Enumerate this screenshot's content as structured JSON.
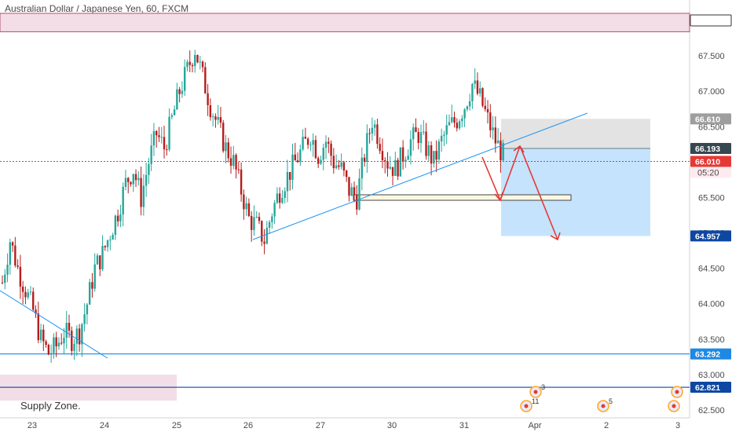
{
  "window": {
    "title": "Australian Dollar / Japanese Yen, 60, FXCM"
  },
  "chart_data": {
    "type": "candlestick",
    "title": "Australian Dollar / Japanese Yen, 60, FXCM",
    "ylim": [
      62.45,
      68.2
    ],
    "y_ticks": [
      62.5,
      63.0,
      63.5,
      64.0,
      64.5,
      65.0,
      65.5,
      66.0,
      66.5,
      67.0,
      67.5
    ],
    "y_tick_labels": [
      "62.500",
      "63.000",
      "63.500",
      "64.000",
      "64.500",
      "65.000",
      "65.500",
      "66.000",
      "66.500",
      "67.000",
      "67.500"
    ],
    "x_tick_labels": [
      "23",
      "24",
      "25",
      "26",
      "27",
      "30",
      "31",
      "Apr",
      "2",
      "3"
    ],
    "price_badges": [
      {
        "value": 68.0,
        "label": "68.000",
        "style": "white"
      },
      {
        "value": 66.61,
        "label": "66.610",
        "style": "gray"
      },
      {
        "value": 66.193,
        "label": "66.193",
        "style": "dark"
      },
      {
        "value": 66.01,
        "label": "66.010",
        "style": "red"
      },
      {
        "value": 64.957,
        "label": "64.957",
        "style": "navy"
      },
      {
        "value": 63.292,
        "label": "63.292",
        "style": "blue"
      },
      {
        "value": 62.821,
        "label": "62.821",
        "style": "navy"
      }
    ],
    "countdown": "05:20",
    "annotations": {
      "supply_zone_label": "Supply Zone."
    },
    "event_counts": [
      "3",
      "11",
      "5"
    ],
    "close_trend": [
      64.3,
      64.9,
      64.5,
      64.2,
      63.9,
      63.5,
      63.3,
      63.4,
      63.6,
      63.5,
      63.6,
      64.0,
      64.5,
      64.7,
      65.0,
      65.3,
      65.7,
      65.9,
      65.5,
      66.0,
      66.4,
      66.2,
      66.6,
      67.0,
      67.3,
      67.6,
      67.2,
      66.8,
      66.5,
      66.2,
      66.0,
      65.6,
      65.2,
      65.1,
      64.9,
      65.3,
      65.6,
      65.8,
      66.0,
      66.2,
      66.4,
      66.1,
      66.3,
      66.0,
      65.9,
      65.6,
      65.5,
      66.1,
      66.6,
      66.3,
      66.0,
      65.9,
      66.1,
      66.3,
      66.4,
      66.2,
      66.0,
      66.3,
      66.5,
      66.6,
      66.8,
      67.1,
      66.9,
      66.6,
      66.3,
      66.1
    ],
    "colors": {
      "bull": "#26a69a",
      "bear": "#b71c1c",
      "trendline": "#2196f3",
      "arrow": "#e53935",
      "target_zone": "#bbdefb",
      "stop_zone": "#e0e0e0",
      "supply_zone": "#f3dde6"
    }
  }
}
